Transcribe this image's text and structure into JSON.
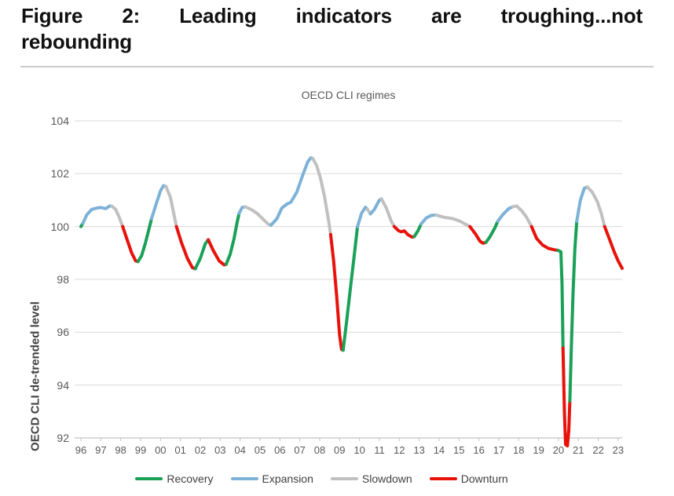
{
  "figure": {
    "title_line1": "Figure 2: Leading indicators are troughing...not",
    "title_line2": "rebounding"
  },
  "chart_data": {
    "type": "line",
    "title": "OECD CLI regimes",
    "xlabel": "",
    "ylabel": "OECD CLI de-trended level",
    "ylim": [
      92,
      104
    ],
    "xlim": [
      1996,
      2023.3
    ],
    "grid": "horizontal",
    "legend_position": "bottom",
    "y_ticks": [
      104,
      102,
      100,
      98,
      96,
      94,
      92
    ],
    "x_ticks": [
      "96",
      "97",
      "98",
      "99",
      "00",
      "01",
      "02",
      "03",
      "04",
      "05",
      "06",
      "07",
      "08",
      "09",
      "10",
      "11",
      "12",
      "13",
      "14",
      "15",
      "16",
      "17",
      "18",
      "19",
      "20",
      "21",
      "22",
      "23"
    ],
    "x_tick_start_year": 1996,
    "regime_colors": {
      "recovery": "#1aa157",
      "expansion": "#7db2d8",
      "slowdown": "#c0c0c0",
      "downturn": "#e8120b"
    },
    "legend": [
      {
        "label": "Recovery",
        "regime": "recovery"
      },
      {
        "label": "Expansion",
        "regime": "expansion"
      },
      {
        "label": "Slowdown",
        "regime": "slowdown"
      },
      {
        "label": "Downturn",
        "regime": "downturn"
      }
    ],
    "segments": [
      {
        "regime": "recovery",
        "points": [
          [
            1996.0,
            100.0
          ],
          [
            1996.1,
            100.12
          ]
        ]
      },
      {
        "regime": "expansion",
        "points": [
          [
            1996.1,
            100.12
          ],
          [
            1996.3,
            100.45
          ],
          [
            1996.55,
            100.65
          ],
          [
            1996.8,
            100.7
          ],
          [
            1997.0,
            100.72
          ],
          [
            1997.25,
            100.68
          ],
          [
            1997.45,
            100.78
          ],
          [
            1997.55,
            100.77
          ]
        ]
      },
      {
        "regime": "slowdown",
        "points": [
          [
            1997.55,
            100.77
          ],
          [
            1997.75,
            100.65
          ],
          [
            1997.95,
            100.3
          ],
          [
            1998.1,
            100.0
          ]
        ]
      },
      {
        "regime": "downturn",
        "points": [
          [
            1998.1,
            100.0
          ],
          [
            1998.3,
            99.55
          ],
          [
            1998.55,
            99.0
          ],
          [
            1998.75,
            98.7
          ],
          [
            1998.87,
            98.67
          ]
        ]
      },
      {
        "regime": "recovery",
        "points": [
          [
            1998.87,
            98.67
          ],
          [
            1999.05,
            98.9
          ],
          [
            1999.25,
            99.4
          ],
          [
            1999.45,
            100.0
          ],
          [
            1999.55,
            100.3
          ]
        ]
      },
      {
        "regime": "expansion",
        "points": [
          [
            1999.55,
            100.3
          ],
          [
            1999.8,
            100.9
          ],
          [
            2000.0,
            101.35
          ],
          [
            2000.15,
            101.55
          ],
          [
            2000.27,
            101.52
          ]
        ]
      },
      {
        "regime": "slowdown",
        "points": [
          [
            2000.27,
            101.52
          ],
          [
            2000.5,
            101.1
          ],
          [
            2000.65,
            100.55
          ],
          [
            2000.8,
            100.0
          ]
        ]
      },
      {
        "regime": "downturn",
        "points": [
          [
            2000.8,
            100.0
          ],
          [
            2001.05,
            99.4
          ],
          [
            2001.35,
            98.8
          ],
          [
            2001.6,
            98.45
          ],
          [
            2001.75,
            98.4
          ]
        ]
      },
      {
        "regime": "recovery",
        "points": [
          [
            2001.75,
            98.4
          ],
          [
            2002.0,
            98.8
          ],
          [
            2002.25,
            99.35
          ],
          [
            2002.4,
            99.5
          ]
        ]
      },
      {
        "regime": "downturn",
        "points": [
          [
            2002.4,
            99.5
          ],
          [
            2002.65,
            99.1
          ],
          [
            2002.95,
            98.7
          ],
          [
            2003.2,
            98.55
          ],
          [
            2003.3,
            98.57
          ]
        ]
      },
      {
        "regime": "recovery",
        "points": [
          [
            2003.3,
            98.57
          ],
          [
            2003.5,
            98.95
          ],
          [
            2003.7,
            99.55
          ],
          [
            2003.85,
            100.15
          ],
          [
            2003.95,
            100.5
          ]
        ]
      },
      {
        "regime": "expansion",
        "points": [
          [
            2003.95,
            100.5
          ],
          [
            2004.1,
            100.72
          ],
          [
            2004.25,
            100.75
          ]
        ]
      },
      {
        "regime": "slowdown",
        "points": [
          [
            2004.25,
            100.75
          ],
          [
            2004.55,
            100.65
          ],
          [
            2004.85,
            100.5
          ],
          [
            2005.15,
            100.28
          ],
          [
            2005.4,
            100.1
          ],
          [
            2005.55,
            100.05
          ]
        ]
      },
      {
        "regime": "expansion",
        "points": [
          [
            2005.55,
            100.05
          ],
          [
            2005.85,
            100.3
          ],
          [
            2006.1,
            100.7
          ],
          [
            2006.35,
            100.85
          ],
          [
            2006.55,
            100.92
          ],
          [
            2006.85,
            101.3
          ],
          [
            2007.15,
            101.95
          ],
          [
            2007.4,
            102.45
          ],
          [
            2007.55,
            102.6
          ],
          [
            2007.65,
            102.58
          ]
        ]
      },
      {
        "regime": "slowdown",
        "points": [
          [
            2007.65,
            102.58
          ],
          [
            2007.85,
            102.3
          ],
          [
            2008.05,
            101.8
          ],
          [
            2008.25,
            101.1
          ],
          [
            2008.45,
            100.2
          ],
          [
            2008.55,
            99.7
          ]
        ]
      },
      {
        "regime": "downturn",
        "points": [
          [
            2008.55,
            99.7
          ],
          [
            2008.7,
            98.7
          ],
          [
            2008.85,
            97.4
          ],
          [
            2009.0,
            95.9
          ],
          [
            2009.1,
            95.35
          ],
          [
            2009.18,
            95.32
          ]
        ]
      },
      {
        "regime": "recovery",
        "points": [
          [
            2009.18,
            95.32
          ],
          [
            2009.35,
            96.4
          ],
          [
            2009.55,
            97.7
          ],
          [
            2009.75,
            99.0
          ],
          [
            2009.9,
            100.0
          ]
        ]
      },
      {
        "regime": "expansion",
        "points": [
          [
            2009.9,
            100.0
          ],
          [
            2010.1,
            100.5
          ],
          [
            2010.3,
            100.73
          ],
          [
            2010.4,
            100.65
          ]
        ]
      },
      {
        "regime": "slowdown",
        "points": [
          [
            2010.4,
            100.65
          ],
          [
            2010.55,
            100.48
          ]
        ]
      },
      {
        "regime": "expansion",
        "points": [
          [
            2010.55,
            100.48
          ],
          [
            2010.75,
            100.65
          ],
          [
            2011.0,
            101.0
          ],
          [
            2011.1,
            101.05
          ]
        ]
      },
      {
        "regime": "slowdown",
        "points": [
          [
            2011.1,
            101.05
          ],
          [
            2011.35,
            100.7
          ],
          [
            2011.6,
            100.2
          ],
          [
            2011.75,
            100.0
          ]
        ]
      },
      {
        "regime": "downturn",
        "points": [
          [
            2011.75,
            100.0
          ],
          [
            2011.95,
            99.85
          ],
          [
            2012.1,
            99.8
          ],
          [
            2012.25,
            99.84
          ],
          [
            2012.45,
            99.68
          ],
          [
            2012.65,
            99.6
          ],
          [
            2012.75,
            99.62
          ]
        ]
      },
      {
        "regime": "recovery",
        "points": [
          [
            2012.75,
            99.62
          ],
          [
            2012.95,
            99.85
          ],
          [
            2013.1,
            100.1
          ]
        ]
      },
      {
        "regime": "expansion",
        "points": [
          [
            2013.1,
            100.1
          ],
          [
            2013.35,
            100.32
          ],
          [
            2013.6,
            100.42
          ],
          [
            2013.85,
            100.44
          ]
        ]
      },
      {
        "regime": "slowdown",
        "points": [
          [
            2013.85,
            100.44
          ],
          [
            2014.25,
            100.35
          ],
          [
            2014.7,
            100.3
          ],
          [
            2015.05,
            100.2
          ],
          [
            2015.35,
            100.08
          ],
          [
            2015.55,
            100.0
          ]
        ]
      },
      {
        "regime": "downturn",
        "points": [
          [
            2015.55,
            100.0
          ],
          [
            2015.85,
            99.7
          ],
          [
            2016.05,
            99.45
          ],
          [
            2016.2,
            99.37
          ],
          [
            2016.35,
            99.4
          ]
        ]
      },
      {
        "regime": "recovery",
        "points": [
          [
            2016.35,
            99.4
          ],
          [
            2016.55,
            99.6
          ],
          [
            2016.8,
            99.95
          ],
          [
            2016.95,
            100.2
          ]
        ]
      },
      {
        "regime": "expansion",
        "points": [
          [
            2016.95,
            100.2
          ],
          [
            2017.2,
            100.45
          ],
          [
            2017.5,
            100.68
          ],
          [
            2017.7,
            100.75
          ]
        ]
      },
      {
        "regime": "slowdown",
        "points": [
          [
            2017.7,
            100.75
          ],
          [
            2017.9,
            100.78
          ],
          [
            2018.15,
            100.6
          ],
          [
            2018.4,
            100.35
          ],
          [
            2018.65,
            100.0
          ]
        ]
      },
      {
        "regime": "downturn",
        "points": [
          [
            2018.65,
            100.0
          ],
          [
            2018.9,
            99.55
          ],
          [
            2019.2,
            99.3
          ],
          [
            2019.5,
            99.17
          ],
          [
            2019.8,
            99.12
          ],
          [
            2019.97,
            99.1
          ]
        ]
      },
      {
        "regime": "recovery",
        "points": [
          [
            2019.97,
            99.1
          ],
          [
            2020.12,
            99.05
          ],
          [
            2020.18,
            97.8
          ],
          [
            2020.23,
            95.4
          ]
        ]
      },
      {
        "regime": "downturn",
        "points": [
          [
            2020.23,
            95.4
          ],
          [
            2020.3,
            93.0
          ],
          [
            2020.36,
            91.75
          ],
          [
            2020.45,
            91.7
          ],
          [
            2020.52,
            92.3
          ],
          [
            2020.57,
            93.4
          ]
        ]
      },
      {
        "regime": "recovery",
        "points": [
          [
            2020.57,
            93.4
          ],
          [
            2020.65,
            95.5
          ],
          [
            2020.73,
            97.4
          ],
          [
            2020.82,
            99.1
          ],
          [
            2020.92,
            100.2
          ]
        ]
      },
      {
        "regime": "expansion",
        "points": [
          [
            2020.92,
            100.2
          ],
          [
            2021.1,
            101.0
          ],
          [
            2021.3,
            101.45
          ],
          [
            2021.45,
            101.5
          ]
        ]
      },
      {
        "regime": "slowdown",
        "points": [
          [
            2021.45,
            101.5
          ],
          [
            2021.7,
            101.3
          ],
          [
            2021.95,
            100.95
          ],
          [
            2022.15,
            100.5
          ],
          [
            2022.32,
            100.0
          ]
        ]
      },
      {
        "regime": "downturn",
        "points": [
          [
            2022.32,
            100.0
          ],
          [
            2022.55,
            99.55
          ],
          [
            2022.8,
            99.05
          ],
          [
            2023.0,
            98.7
          ],
          [
            2023.2,
            98.42
          ]
        ]
      }
    ],
    "colors": {
      "gridline": "#dadada",
      "axis_line": "#c2c2c2",
      "tick_label": "#595959",
      "chart_title": "#595959",
      "axis_title": "#404040",
      "figure_title": "#111111"
    }
  }
}
